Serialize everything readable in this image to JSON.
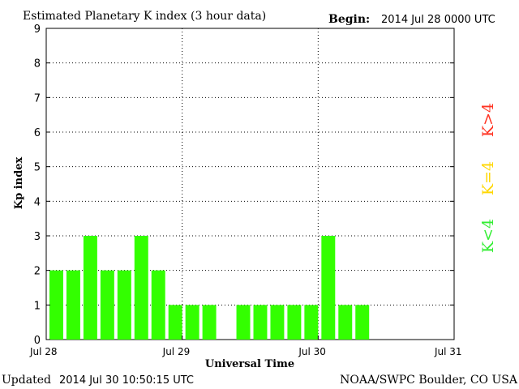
{
  "header": {
    "title": "Estimated Planetary K index (3 hour data)",
    "begin_label": "Begin:",
    "begin_value": "2014 Jul 28 0000 UTC"
  },
  "footer": {
    "updated_label": "Updated",
    "updated_value": "2014 Jul 30 10:50:15 UTC",
    "source": "NOAA/SWPC Boulder, CO USA"
  },
  "legend": [
    {
      "label": "K<4",
      "color": "#33ee33"
    },
    {
      "label": "K=4",
      "color": "#ffd700"
    },
    {
      "label": "K>4",
      "color": "#ff3322"
    }
  ],
  "chart_data": {
    "type": "bar",
    "title": "Estimated Planetary K index (3 hour data)",
    "xlabel": "Universal Time",
    "ylabel": "Kp index",
    "ylim": [
      0,
      9
    ],
    "yticks": [
      "0",
      "1",
      "2",
      "3",
      "4",
      "5",
      "6",
      "7",
      "8",
      "9"
    ],
    "xticks": [
      "Jul 28",
      "Jul 29",
      "Jul 30",
      "Jul 31"
    ],
    "bars_per_day": 8,
    "days": 3,
    "values": [
      2,
      2,
      3,
      2,
      2,
      3,
      2,
      1,
      1,
      1,
      0,
      1,
      1,
      1,
      1,
      1,
      3,
      1,
      1
    ],
    "bar_color": "#33ff00",
    "grid": "dotted",
    "legend_position": "right"
  }
}
